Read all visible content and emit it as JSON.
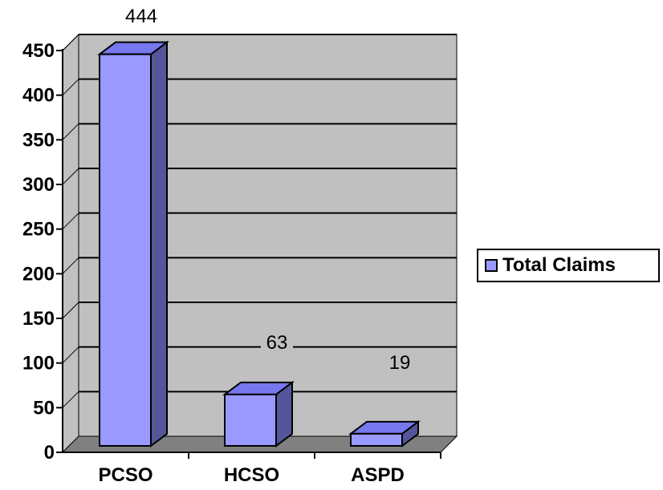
{
  "chart_data": {
    "type": "bar",
    "categories": [
      "PCSO",
      "HCSO",
      "ASPD"
    ],
    "series": [
      {
        "name": "Total Claims",
        "values": [
          444,
          63,
          19
        ]
      }
    ],
    "data_labels": [
      "444",
      "63",
      "19"
    ],
    "y_ticks": [
      "0",
      "50",
      "100",
      "150",
      "200",
      "250",
      "300",
      "350",
      "400",
      "450"
    ],
    "ylim": [
      0,
      450
    ],
    "grid": true,
    "legend_position": "right",
    "colors": {
      "bar_front": "#9999ff",
      "bar_top": "#7777ee",
      "bar_side": "#555599",
      "wall": "#c0c0c0",
      "floor": "#808080"
    }
  },
  "legend": {
    "label": "Total Claims"
  }
}
